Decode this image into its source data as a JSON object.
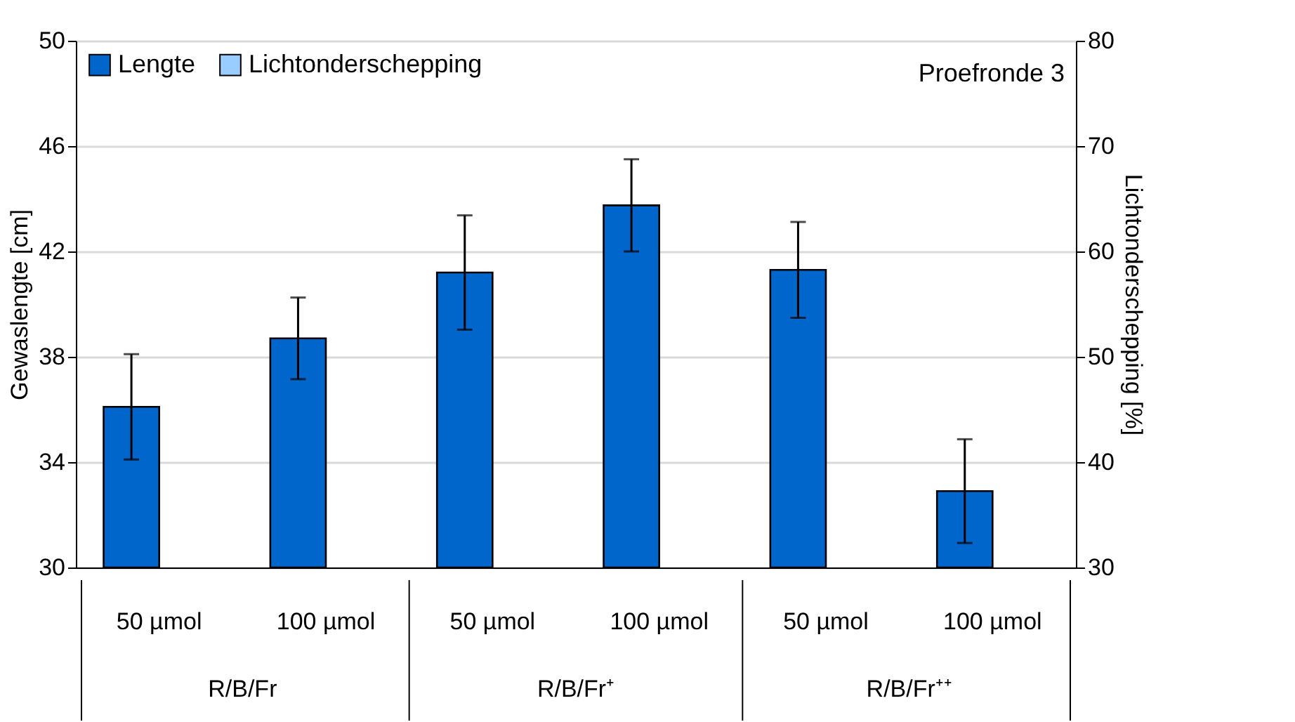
{
  "chart_data": {
    "type": "bar",
    "title": "Proefronde 3",
    "ylabel": "Gewaslengte [cm]",
    "y2label": "Lichtonderschepping [%]",
    "categories": [
      "50 µmol",
      "100 µmol",
      "50 µmol",
      "100 µmol",
      "50 µmol",
      "100 µmol"
    ],
    "annotations": [
      "R/B/Fr",
      "R/B/Fr⁺",
      "R/B/Fr⁺⁺"
    ],
    "series": [
      {
        "name": "Lengte",
        "color": "#0066cc",
        "values": [
          36.1,
          38.7,
          41.2,
          43.75,
          41.3,
          32.9
        ],
        "errors": [
          2.0,
          1.55,
          2.17,
          1.75,
          1.82,
          1.97
        ]
      },
      {
        "name": "Lichtonderschepping",
        "color": "#99ccff",
        "axis": "y2",
        "values": [
          null,
          null,
          null,
          null,
          null,
          null
        ]
      }
    ],
    "ylim": [
      30,
      50
    ],
    "yticks": [
      30,
      34,
      38,
      42,
      46,
      50
    ],
    "y2lim": [
      30,
      80
    ],
    "y2ticks": [
      30,
      40,
      50,
      60,
      70,
      80
    ],
    "grid": "y",
    "legend": "top left"
  }
}
